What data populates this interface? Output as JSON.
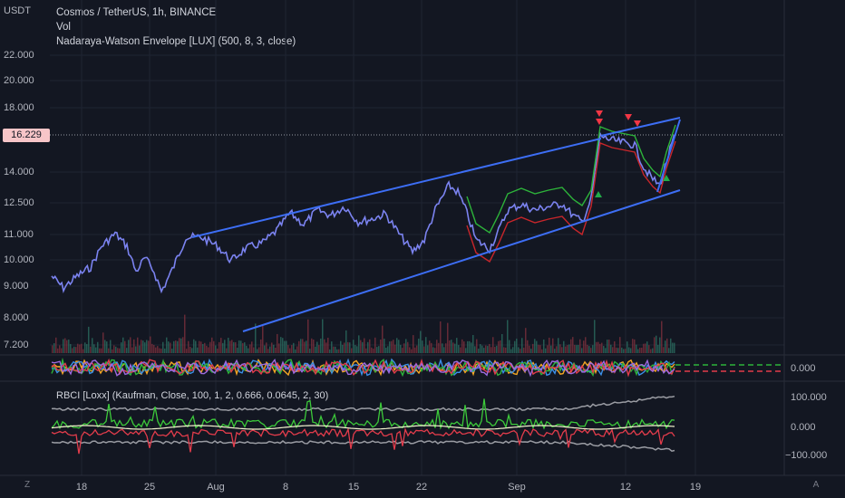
{
  "header": {
    "currency": "USDT",
    "symbol_line": "Cosmos / TetherUS, 1h, BINANCE",
    "indicator_vol": "Vol",
    "indicator_nwe": "Nadaraya-Watson Envelope [LUX] (500, 8, 3, close)"
  },
  "price_axis": {
    "labels": [
      "22.000",
      "20.000",
      "18.000",
      "14.000",
      "12.500",
      "11.000",
      "10.000",
      "9.000",
      "8.000",
      "7.200"
    ],
    "current_price": "16.229"
  },
  "oscillator_axis": {
    "zero_label": "0.000"
  },
  "rbci": {
    "title": "RBCI [Loxx] (Kaufman, Close, 100, 1, 2, 0.666, 0.0645, 2, 30)",
    "labels": [
      "100.000",
      "0.000",
      "−100.000"
    ]
  },
  "time_axis": {
    "labels": [
      "18",
      "25",
      "Aug",
      "8",
      "15",
      "22",
      "Sep",
      "12",
      "19"
    ]
  },
  "corner_buttons": {
    "left": "Z",
    "right": "A"
  },
  "colors": {
    "background": "#131722",
    "trendline": "#3d6ef5",
    "candles": "#7b83f0",
    "envelope_upper": "#2db33a",
    "envelope_lower": "#c8262b",
    "rbci_line": "#3cc93a",
    "rbci_neg": "#e23c4b",
    "bands": "#9a9ca3",
    "signal_down": "#f23645",
    "signal_up": "#22ab48"
  }
}
